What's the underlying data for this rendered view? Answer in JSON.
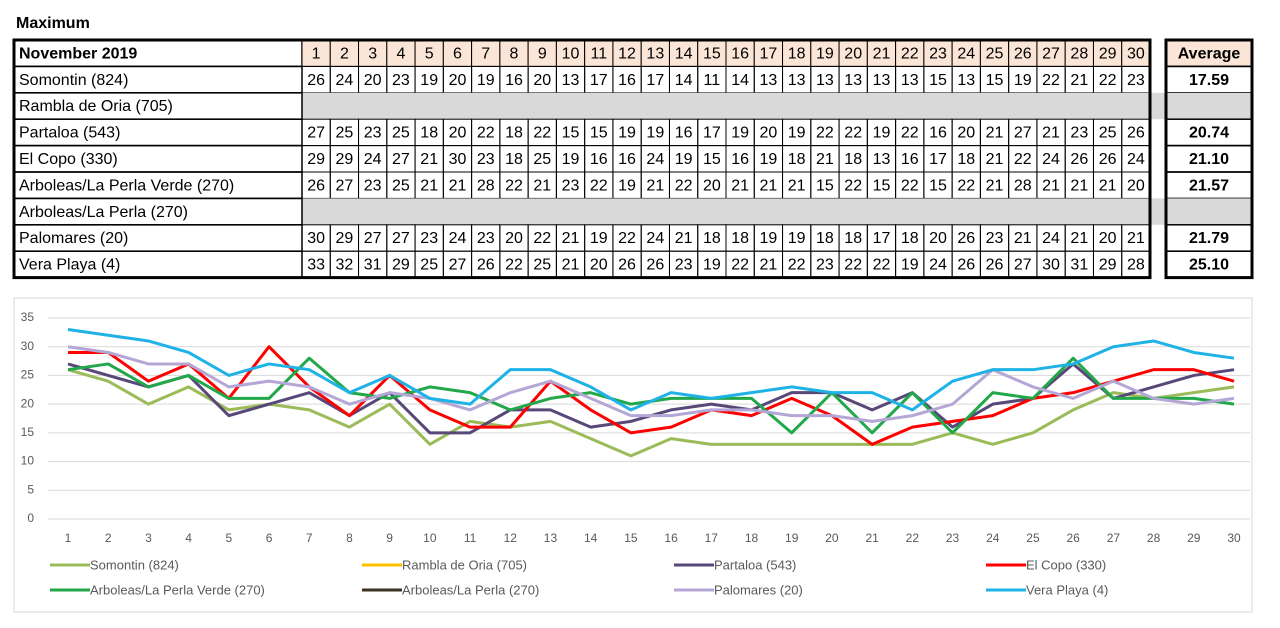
{
  "title": "Maximum",
  "table": {
    "header": "November 2019",
    "average_header": "Average",
    "averages": [
      "17.59",
      null,
      "20.74",
      "21.10",
      "21.57",
      null,
      "21.79",
      "25.10"
    ]
  },
  "chart_data": {
    "type": "line",
    "categories": [
      1,
      2,
      3,
      4,
      5,
      6,
      7,
      8,
      9,
      10,
      11,
      12,
      13,
      14,
      15,
      16,
      17,
      18,
      19,
      20,
      21,
      22,
      23,
      24,
      25,
      26,
      27,
      28,
      29,
      30
    ],
    "ylim": [
      0,
      35
    ],
    "yticks": [
      0,
      5,
      10,
      15,
      20,
      25,
      30,
      35
    ],
    "grid": true,
    "legend": "bottom",
    "series": [
      {
        "name": "Somontin (824)",
        "color": "#9bbb59",
        "values": [
          26,
          24,
          20,
          23,
          19,
          20,
          19,
          16,
          20,
          13,
          17,
          16,
          17,
          14,
          11,
          14,
          13,
          13,
          13,
          13,
          13,
          13,
          15,
          13,
          15,
          19,
          22,
          21,
          22,
          23
        ]
      },
      {
        "name": "Rambla de Oria (705)",
        "color": "#ffc000",
        "values": [
          null,
          null,
          null,
          null,
          null,
          null,
          null,
          null,
          null,
          null,
          null,
          null,
          null,
          null,
          null,
          null,
          null,
          null,
          null,
          null,
          null,
          null,
          null,
          null,
          null,
          null,
          null,
          null,
          null,
          null
        ]
      },
      {
        "name": "Partaloa (543)",
        "color": "#58487a",
        "values": [
          27,
          25,
          23,
          25,
          18,
          20,
          22,
          18,
          22,
          15,
          15,
          19,
          19,
          16,
          17,
          19,
          20,
          19,
          22,
          22,
          19,
          22,
          16,
          20,
          21,
          27,
          21,
          23,
          25,
          26
        ]
      },
      {
        "name": "El Copo (330)",
        "color": "#ff0000",
        "values": [
          29,
          29,
          24,
          27,
          21,
          30,
          23,
          18,
          25,
          19,
          16,
          16,
          24,
          19,
          15,
          16,
          19,
          18,
          21,
          18,
          13,
          16,
          17,
          18,
          21,
          22,
          24,
          26,
          26,
          24
        ]
      },
      {
        "name": "Arboleas/La Perla Verde (270)",
        "color": "#22a84a",
        "values": [
          26,
          27,
          23,
          25,
          21,
          21,
          28,
          22,
          21,
          23,
          22,
          19,
          21,
          22,
          20,
          21,
          21,
          21,
          15,
          22,
          15,
          22,
          15,
          22,
          21,
          28,
          21,
          21,
          21,
          20
        ]
      },
      {
        "name": "Arboleas/La Perla (270)",
        "color": "#3d3320",
        "values": [
          null,
          null,
          null,
          null,
          null,
          null,
          null,
          null,
          null,
          null,
          null,
          null,
          null,
          null,
          null,
          null,
          null,
          null,
          null,
          null,
          null,
          null,
          null,
          null,
          null,
          null,
          null,
          null,
          null,
          null
        ]
      },
      {
        "name": "Palomares (20)",
        "color": "#b4a7d6",
        "values": [
          30,
          29,
          27,
          27,
          23,
          24,
          23,
          20,
          22,
          21,
          19,
          22,
          24,
          21,
          18,
          18,
          19,
          19,
          18,
          18,
          17,
          18,
          20,
          26,
          23,
          21,
          24,
          21,
          20,
          21
        ]
      },
      {
        "name": "Vera Playa (4)",
        "color": "#1fb2e6",
        "values": [
          33,
          32,
          31,
          29,
          25,
          27,
          26,
          22,
          25,
          21,
          20,
          26,
          26,
          23,
          19,
          22,
          21,
          22,
          23,
          22,
          22,
          19,
          24,
          26,
          26,
          27,
          30,
          31,
          29,
          28
        ]
      }
    ]
  }
}
